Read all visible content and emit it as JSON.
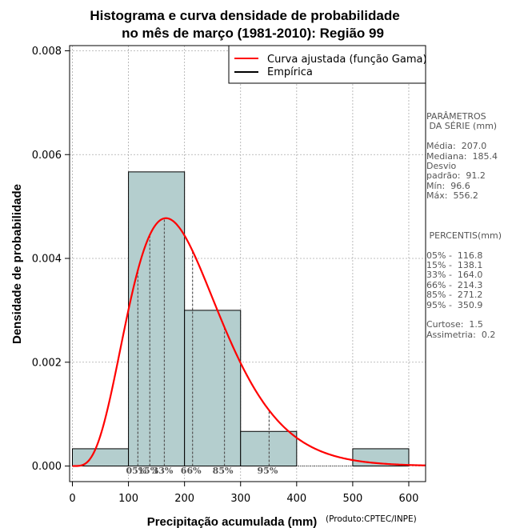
{
  "chart_data": {
    "type": "bar",
    "title": [
      "Histograma e curva densidade de probabilidade",
      "no mês de março (1981-2010): Região 99"
    ],
    "xlabel": "Precipitação acumulada (mm)",
    "ylabel": "Densidade de probabilidade",
    "credit": "(Produto:CPTEC/INPE)",
    "xlim": [
      -5,
      630
    ],
    "ylim": [
      -0.0003,
      0.0081
    ],
    "xticks": [
      "0",
      "100",
      "200",
      "300",
      "400",
      "500",
      "600"
    ],
    "xtick_values": [
      0,
      100,
      200,
      300,
      400,
      500,
      600
    ],
    "yticks": [
      "0.000",
      "0.002",
      "0.004",
      "0.006",
      "0.008"
    ],
    "ytick_values": [
      0,
      0.002,
      0.004,
      0.006,
      0.008
    ],
    "grid": true,
    "bins": [
      {
        "start": 0,
        "end": 100,
        "density": 0.000333
      },
      {
        "start": 100,
        "end": 200,
        "density": 0.005667
      },
      {
        "start": 200,
        "end": 300,
        "density": 0.003
      },
      {
        "start": 300,
        "end": 400,
        "density": 0.000667
      },
      {
        "start": 400,
        "end": 500,
        "density": 0
      },
      {
        "start": 500,
        "end": 600,
        "density": 0.000333
      }
    ],
    "gamma_fit": {
      "shape": 5.15,
      "scale": 40.2
    },
    "percentiles": [
      {
        "label": "05%",
        "value": 116.8
      },
      {
        "label": "15%",
        "value": 138.1
      },
      {
        "label": "33%",
        "value": 164.0
      },
      {
        "label": "66%",
        "value": 214.3
      },
      {
        "label": "85%",
        "value": 271.2
      },
      {
        "label": "95%",
        "value": 350.9
      }
    ],
    "legend": [
      {
        "label": "Curva ajustada (função Gama)",
        "color": "#ff0000"
      },
      {
        "label": "Empírica",
        "color": "#000000"
      }
    ],
    "legend_position": "top-right",
    "colors": {
      "bar_fill": "#b4cece",
      "curve": "#ff0000",
      "grid": "#aaaaaa",
      "percentile_line": "#555555"
    }
  },
  "side_panel": {
    "params_heading": [
      "PARÂMETROS",
      " DA SÉRIE (mm)"
    ],
    "params": [
      "Média:  207.0",
      "Mediana:  185.4",
      "Desvio",
      "padrão:  91.2",
      "Mín:  96.6",
      "Máx:  556.2"
    ],
    "percentis_heading": " PERCENTIS(mm)",
    "percentis": [
      "05% -  116.8",
      "15% -  138.1",
      "33% -  164.0",
      "66% -  214.3",
      "85% -  271.2",
      "95% -  350.9"
    ],
    "stats": [
      "Curtose:  1.5",
      "Assimetria:  0.2"
    ]
  }
}
